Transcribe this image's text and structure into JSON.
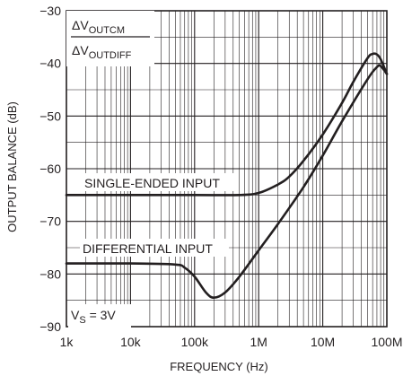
{
  "chart_data": {
    "type": "line",
    "xlabel": "FREQUENCY (Hz)",
    "ylabel": "OUTPUT BALANCE (dB)",
    "xscale": "log",
    "xlim": [
      1000,
      100000000
    ],
    "ylim": [
      -90,
      -30
    ],
    "grid": true,
    "x_tick_labels": [
      "1k",
      "10k",
      "100k",
      "1M",
      "10M",
      "100M"
    ],
    "y_tick_labels": [
      "-30",
      "-40",
      "-50",
      "-60",
      "-70",
      "-80",
      "-90"
    ],
    "ratio_label": {
      "numerator": {
        "main": "ΔV",
        "sub": "OUTCM"
      },
      "denominator": {
        "main": "ΔV",
        "sub": "OUTDIFF"
      }
    },
    "condition_label": {
      "main": "V",
      "sub": "S",
      "rest": " = 3V"
    },
    "series": [
      {
        "name": "SINGLE-ENDED INPUT",
        "x": [
          1000,
          10000,
          100000,
          500000,
          1000000,
          2000000,
          3000000,
          5000000,
          10000000,
          20000000,
          30000000,
          50000000,
          60000000,
          70000000,
          80000000,
          100000000
        ],
        "y": [
          -65,
          -65,
          -65,
          -65,
          -64.6,
          -63,
          -61.5,
          -58.5,
          -53.5,
          -47.5,
          -43.5,
          -39,
          -38.2,
          -38.3,
          -39.2,
          -42
        ]
      },
      {
        "name": "DIFFERENTIAL INPUT",
        "x": [
          1000,
          10000,
          50000,
          70000,
          100000,
          150000,
          200000,
          300000,
          500000,
          1000000,
          2000000,
          5000000,
          10000000,
          20000000,
          50000000,
          70000000,
          80000000,
          100000000
        ],
        "y": [
          -78,
          -78,
          -78.2,
          -78.8,
          -80.5,
          -83.5,
          -84.5,
          -83.5,
          -80.5,
          -75.5,
          -70.5,
          -63.5,
          -57.5,
          -51,
          -43,
          -40.7,
          -40.5,
          -42
        ]
      }
    ]
  }
}
